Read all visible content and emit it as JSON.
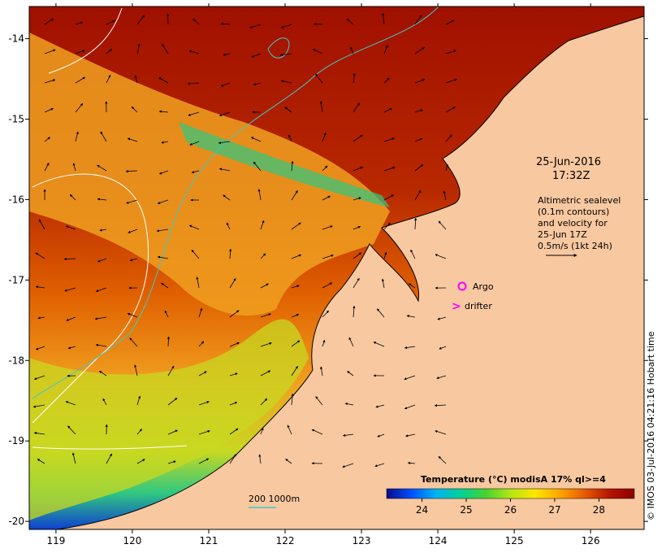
{
  "map": {
    "lat_ticks": [
      "-14",
      "-15",
      "-16",
      "-17",
      "-18",
      "-19",
      "-20"
    ],
    "lon_ticks": [
      "119",
      "120",
      "121",
      "122",
      "123",
      "124",
      "125",
      "126"
    ],
    "lat_range": [
      -20.1,
      -13.6
    ],
    "lon_range": [
      118.65,
      126.7
    ]
  },
  "annotations": {
    "date": "25-Jun-2016",
    "time": "17:32Z",
    "altimetry_lines": [
      "Altimetric sealevel",
      "(0.1m contours)",
      "and velocity for",
      "25-Jun 17Z",
      "0.5m/s (1kt 24h)"
    ]
  },
  "legend_markers": {
    "argo_label": "Argo",
    "argo_color": "#ff00ff",
    "drifter_symbol": ">",
    "drifter_label": "drifter"
  },
  "depth_legend": {
    "label": "200  1000m",
    "color": "#40c8c8"
  },
  "colorbar": {
    "title": "Temperature  (°C) modisA 17% ql>=4",
    "ticks": [
      "24",
      "25",
      "26",
      "27",
      "28"
    ],
    "min": 23.2,
    "max": 28.8,
    "colors": [
      "#0a0a8c",
      "#0050ff",
      "#00b4f0",
      "#00d296",
      "#46d232",
      "#b4e614",
      "#ffe600",
      "#ffa500",
      "#e65a00",
      "#b41400",
      "#8c0000"
    ]
  },
  "credit": "© IMOS 03-Jul-2016 04:21:16 Hobart time",
  "colors": {
    "land": "#f8c8a0",
    "hot_sea": "#a01000",
    "contour_white": "#ffffff",
    "contour_cyan": "#40c8c8"
  }
}
